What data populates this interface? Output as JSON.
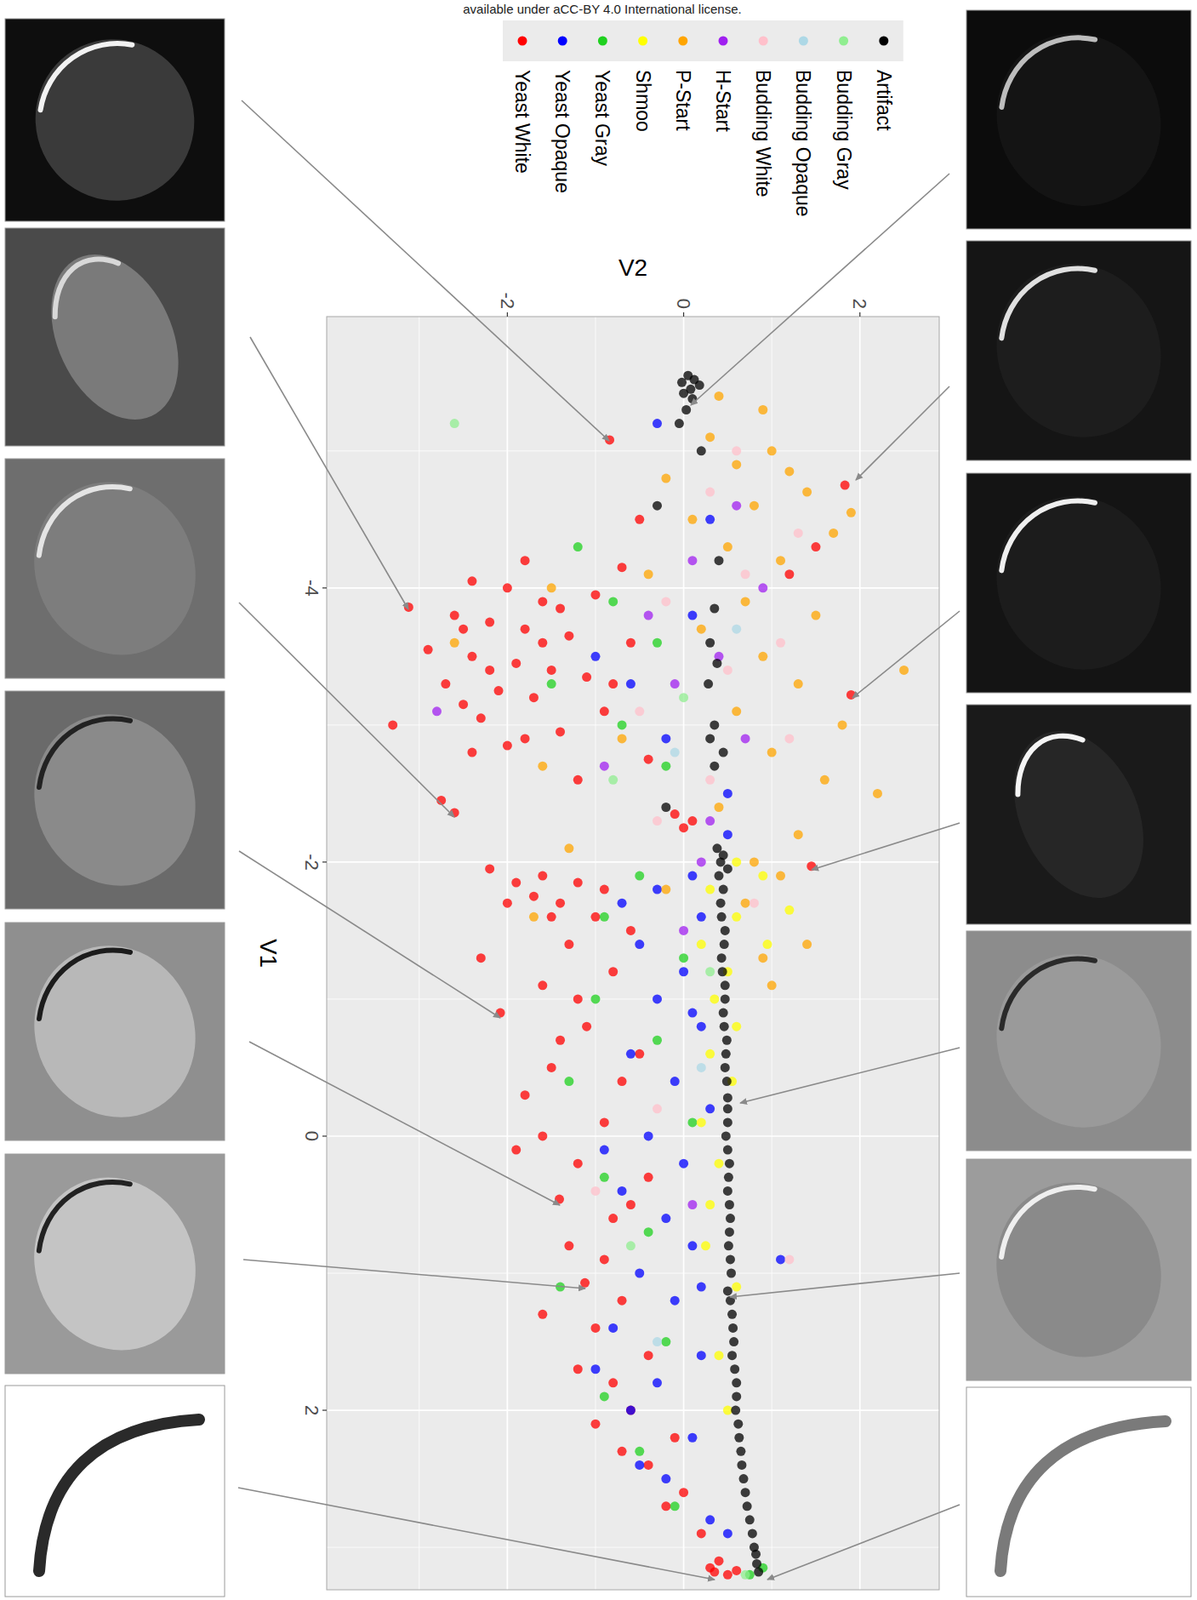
{
  "chart_data": {
    "type": "scatter",
    "annotations": [
      "available under aCC-BY 4.0 International license."
    ],
    "xlabel": "V1",
    "ylabel": "V2",
    "xlim": [
      -5.98,
      3.31
    ],
    "ylim": [
      -4.05,
      2.9
    ],
    "xticks": [
      -4,
      -2,
      0,
      2
    ],
    "yticks": [
      -2,
      0,
      2
    ],
    "grid": true,
    "legend": "top",
    "series": [
      {
        "name": "Yeast White",
        "color": "#ff0000",
        "x": [
          -5.08,
          -4.75,
          -4.5,
          -4.3,
          -4.1,
          -3.86,
          -3.22,
          -4.05,
          -4.0,
          -3.9,
          -3.95,
          -3.8,
          -3.75,
          -3.7,
          -3.65,
          -3.6,
          -3.55,
          -3.5,
          -3.45,
          -3.4,
          -3.35,
          -3.3,
          -3.25,
          -3.2,
          -3.1,
          -3.05,
          -3.0,
          -2.95,
          -2.85,
          -2.75,
          -2.6,
          -2.45,
          -2.36,
          -2.35,
          -2.3,
          -2.25,
          -1.97,
          -1.9,
          -1.85,
          -1.8,
          -1.75,
          -1.7,
          -1.6,
          -1.5,
          -1.4,
          -1.3,
          -1.2,
          -1.1,
          -0.9,
          -0.8,
          -0.6,
          -0.5,
          -0.3,
          -0.1,
          0.0,
          0.2,
          0.3,
          0.46,
          0.6,
          0.8,
          1.07,
          1.2,
          1.4,
          1.6,
          1.8,
          2.0,
          2.2,
          2.4,
          2.6,
          2.9,
          3.1,
          3.15,
          3.18,
          3.2,
          3.17,
          -4.2,
          -4.15,
          -3.85,
          -3.7,
          -3.6,
          -3.4,
          -3.3,
          -3.15,
          -2.9,
          -2.8,
          -1.95,
          -1.85,
          -1.7,
          -1.6,
          -1.0,
          -0.7,
          -0.4,
          0.1,
          0.5,
          0.9,
          1.3,
          1.7,
          2.1,
          2.3,
          2.7
        ],
        "values": [
          -0.84,
          1.83,
          -0.5,
          1.5,
          1.2,
          -3.12,
          1.9,
          -2.4,
          -2.0,
          -1.6,
          -1.0,
          -2.6,
          -2.2,
          -1.8,
          -1.3,
          -0.6,
          -2.9,
          -2.4,
          -1.9,
          -1.5,
          -1.1,
          -2.7,
          -2.1,
          -1.7,
          -0.9,
          -2.3,
          -3.3,
          -1.4,
          -2.0,
          -0.4,
          -1.2,
          -2.75,
          -2.6,
          -0.1,
          0.1,
          0.0,
          1.45,
          -1.6,
          -1.2,
          -0.9,
          -1.7,
          -1.4,
          -1.0,
          -0.6,
          -1.3,
          -2.3,
          -0.8,
          -1.6,
          -2.08,
          -1.1,
          -0.5,
          -1.5,
          -1.8,
          -0.9,
          -1.6,
          -1.2,
          -0.4,
          -1.41,
          -0.8,
          -1.3,
          -1.12,
          -0.7,
          -1.0,
          -0.4,
          -0.8,
          -0.6,
          -0.1,
          -0.4,
          0.0,
          0.2,
          0.4,
          0.3,
          0.35,
          0.5,
          0.6,
          -1.8,
          -0.7,
          -1.4,
          -2.5,
          -1.6,
          -2.2,
          -0.8,
          -2.5,
          -1.8,
          -2.4,
          -2.2,
          -1.9,
          -2.0,
          -1.5,
          -1.2,
          -1.4,
          -0.7,
          -1.9,
          -0.6,
          -0.9,
          -1.6,
          -1.2,
          -1.0,
          -0.7,
          -0.2
        ]
      },
      {
        "name": "Yeast Opaque",
        "color": "#0000ff",
        "x": [
          -5.2,
          -4.5,
          -3.8,
          -3.3,
          -2.9,
          -2.5,
          -1.9,
          -1.8,
          -1.6,
          -1.4,
          -1.2,
          -1.0,
          -0.8,
          -0.6,
          -0.4,
          -0.2,
          0.0,
          0.2,
          0.4,
          0.6,
          0.8,
          1.0,
          1.2,
          1.4,
          1.6,
          1.8,
          2.0,
          2.2,
          2.5,
          2.8,
          0.9,
          1.7,
          -1.7,
          -0.9,
          0.1,
          1.1,
          2.4,
          2.9,
          -3.5,
          -2.2
        ],
        "values": [
          -0.3,
          0.3,
          0.1,
          -0.6,
          -0.2,
          0.5,
          0.1,
          -0.3,
          0.2,
          -0.5,
          0.0,
          -0.3,
          0.2,
          -0.6,
          -0.1,
          0.3,
          -0.4,
          0.0,
          -0.7,
          -0.2,
          0.1,
          -0.5,
          -0.1,
          -0.8,
          0.2,
          -0.3,
          -0.6,
          0.1,
          -0.2,
          0.3,
          1.1,
          -1.0,
          -0.7,
          0.1,
          -0.9,
          0.2,
          -0.5,
          0.5,
          -1.0,
          0.5
        ]
      },
      {
        "name": "Yeast Gray",
        "color": "#1fd11f",
        "x": [
          -4.3,
          -3.9,
          -3.6,
          -3.3,
          -3.0,
          -2.7,
          -1.9,
          -1.6,
          -1.3,
          -1.0,
          -0.7,
          -0.4,
          -0.1,
          0.3,
          0.7,
          1.1,
          1.5,
          1.9,
          2.3,
          2.7,
          3.2,
          3.15
        ],
        "values": [
          -1.2,
          -0.8,
          -0.3,
          -1.5,
          -0.7,
          -0.2,
          -0.5,
          -0.9,
          0.0,
          -1.0,
          -0.3,
          -1.3,
          0.1,
          -0.9,
          -0.4,
          -1.4,
          -0.2,
          -0.9,
          -0.5,
          -0.1,
          0.75,
          0.9
        ]
      },
      {
        "name": "Shmoo",
        "color": "#ffff00",
        "x": [
          -2.0,
          -1.9,
          -1.8,
          -1.65,
          -1.6,
          -1.4,
          -1.2,
          -1.0,
          -0.8,
          -0.6,
          -0.4,
          -0.1,
          0.2,
          0.5,
          0.8,
          1.1,
          1.6,
          2.0,
          -1.4
        ],
        "values": [
          0.6,
          0.9,
          0.3,
          1.2,
          0.6,
          0.2,
          0.5,
          0.35,
          0.6,
          0.3,
          0.55,
          0.2,
          0.4,
          0.3,
          0.25,
          0.6,
          0.4,
          0.5,
          0.95
        ]
      },
      {
        "name": "P-Start",
        "color": "#ffa500",
        "x": [
          -5.1,
          -5.0,
          -4.9,
          -4.8,
          -4.7,
          -4.6,
          -4.5,
          -4.4,
          -4.3,
          -4.2,
          -4.1,
          -3.9,
          -3.8,
          -3.7,
          -3.5,
          -3.4,
          -3.3,
          -3.1,
          -3.0,
          -2.9,
          -2.8,
          -2.6,
          -2.5,
          -2.4,
          -2.2,
          -2.1,
          -2.0,
          -1.9,
          -1.8,
          -1.7,
          -1.6,
          -1.4,
          -1.3,
          -1.1,
          -3.6,
          -2.7,
          -4.0,
          -5.4,
          -5.3,
          -4.85,
          -4.55
        ],
        "values": [
          0.3,
          1.0,
          0.6,
          -0.2,
          1.4,
          0.8,
          0.1,
          1.7,
          0.5,
          1.1,
          -0.4,
          0.7,
          1.5,
          0.2,
          0.9,
          2.5,
          1.3,
          0.6,
          1.8,
          -0.7,
          1.0,
          1.6,
          2.2,
          0.4,
          1.3,
          -1.3,
          0.8,
          1.1,
          -0.2,
          0.7,
          -1.7,
          1.4,
          0.9,
          1.0,
          -2.6,
          -1.6,
          -1.5,
          0.4,
          0.9,
          1.2,
          1.9
        ]
      },
      {
        "name": "H-Start",
        "color": "#a020f0",
        "x": [
          -4.6,
          -4.2,
          -4.0,
          -3.8,
          -3.5,
          -3.3,
          -3.1,
          -2.9,
          -2.7,
          -2.3,
          -2.0,
          -1.5,
          0.5
        ],
        "values": [
          0.6,
          0.1,
          0.9,
          -0.4,
          0.4,
          -0.1,
          -2.8,
          0.7,
          -0.9,
          0.3,
          0.2,
          0.0,
          0.1
        ]
      },
      {
        "name": "Budding White",
        "color": "#ffc0cb",
        "x": [
          -5.0,
          -4.7,
          -4.4,
          -4.1,
          -3.9,
          -3.6,
          -3.4,
          -3.1,
          -2.9,
          -2.6,
          -2.3,
          -1.7,
          -0.2,
          0.9,
          0.4
        ],
        "values": [
          0.6,
          0.3,
          1.3,
          0.7,
          -0.2,
          1.1,
          0.5,
          -0.5,
          1.2,
          0.3,
          -0.3,
          0.8,
          -0.3,
          1.2,
          -1.0
        ]
      },
      {
        "name": "Budding Opaque",
        "color": "#add8e6",
        "x": [
          -3.7,
          -2.8,
          -0.5,
          1.5
        ],
        "values": [
          0.6,
          -0.1,
          0.2,
          -0.3
        ]
      },
      {
        "name": "Budding Gray",
        "color": "#90ee90",
        "x": [
          -5.2,
          -3.2,
          -2.6,
          -1.2,
          0.8,
          3.2
        ],
        "values": [
          -2.6,
          0.0,
          -0.8,
          0.3,
          -0.6,
          0.7
        ]
      },
      {
        "name": "Artifact",
        "color": "#000000",
        "x": [
          -5.55,
          -5.52,
          -5.5,
          -5.48,
          -5.45,
          -5.42,
          -5.38,
          -5.3,
          -5.2,
          -5.0,
          -4.6,
          -4.2,
          -3.85,
          -3.6,
          -3.45,
          -3.3,
          -3.0,
          -2.9,
          -2.8,
          -2.7,
          -2.4,
          -2.1,
          -2.05,
          -2.0,
          -1.95,
          -1.9,
          -1.8,
          -1.6,
          -1.4,
          -1.2,
          -1.0,
          -0.8,
          -0.6,
          -0.4,
          -0.28,
          -0.1,
          0.1,
          0.3,
          0.5,
          0.7,
          0.9,
          1.13,
          1.3,
          1.5,
          1.7,
          1.9,
          2.1,
          2.3,
          2.5,
          2.7,
          2.9,
          3.05,
          3.18,
          -1.7,
          -1.5,
          -1.3,
          -1.1,
          -0.9,
          -0.7,
          -0.5,
          -0.2,
          0.0,
          0.2,
          0.4,
          0.6,
          0.8,
          1.0,
          1.2,
          1.4,
          1.6,
          1.8,
          2.0,
          2.2,
          2.4,
          2.6,
          2.8,
          3.0,
          3.12
        ],
        "values": [
          0.05,
          0.12,
          -0.02,
          0.18,
          0.08,
          0.0,
          0.1,
          0.03,
          -0.05,
          0.2,
          -0.3,
          0.4,
          0.35,
          0.3,
          0.38,
          0.28,
          0.35,
          0.3,
          0.45,
          0.35,
          -0.2,
          0.38,
          0.45,
          0.42,
          0.5,
          0.4,
          0.45,
          0.43,
          0.46,
          0.44,
          0.47,
          0.46,
          0.48,
          0.49,
          0.5,
          0.5,
          0.5,
          0.51,
          0.52,
          0.52,
          0.53,
          0.5,
          0.55,
          0.57,
          0.58,
          0.6,
          0.62,
          0.65,
          0.68,
          0.72,
          0.78,
          0.82,
          0.85,
          0.42,
          0.47,
          0.43,
          0.47,
          0.45,
          0.49,
          0.47,
          0.5,
          0.48,
          0.52,
          0.5,
          0.53,
          0.51,
          0.54,
          0.53,
          0.56,
          0.55,
          0.6,
          0.59,
          0.63,
          0.66,
          0.7,
          0.75,
          0.8,
          0.83
        ]
      }
    ]
  }
}
